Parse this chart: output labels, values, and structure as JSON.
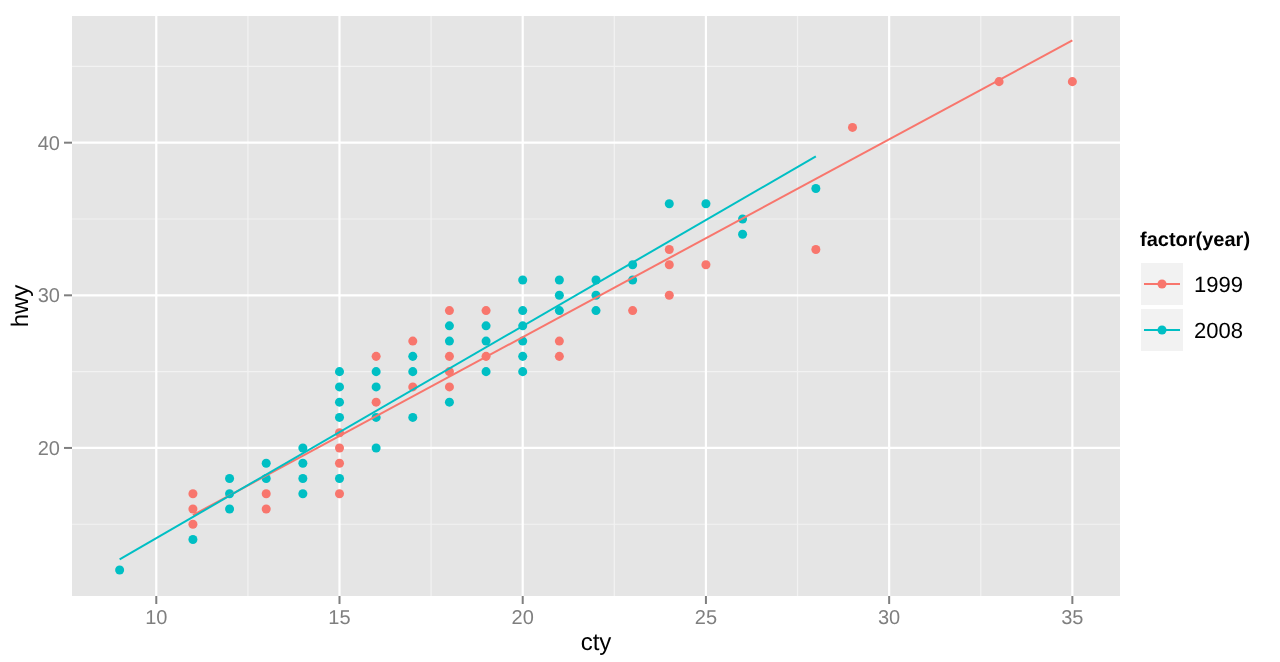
{
  "chart_data": {
    "type": "scatter",
    "xlabel": "cty",
    "ylabel": "hwy",
    "legend_title": "factor(year)",
    "legend": "right",
    "grid": true,
    "marker": "circle",
    "xlim": [
      7.7,
      36.3
    ],
    "ylim": [
      10.3,
      48.3
    ],
    "xticks": [
      10,
      15,
      20,
      25,
      30,
      35
    ],
    "yticks": [
      20,
      30,
      40
    ],
    "series": [
      {
        "name": "1999",
        "color": "#f8766d",
        "x": [
          11,
          11,
          11,
          13,
          13,
          15,
          15,
          15,
          15,
          16,
          16,
          17,
          17,
          18,
          18,
          18,
          18,
          19,
          19,
          21,
          21,
          23,
          24,
          24,
          24,
          25,
          28,
          29,
          33,
          35
        ],
        "values": [
          17,
          16,
          15,
          17,
          16,
          21,
          20,
          19,
          17,
          26,
          23,
          27,
          24,
          29,
          26,
          25,
          24,
          29,
          26,
          27,
          26,
          29,
          33,
          32,
          30,
          32,
          33,
          41,
          44,
          44
        ]
      },
      {
        "name": "2008",
        "color": "#00bfc4",
        "x": [
          9,
          11,
          12,
          12,
          12,
          13,
          13,
          14,
          14,
          14,
          14,
          15,
          15,
          15,
          15,
          15,
          16,
          16,
          16,
          16,
          17,
          17,
          17,
          18,
          18,
          18,
          19,
          19,
          19,
          20,
          20,
          20,
          20,
          20,
          20,
          21,
          21,
          21,
          22,
          22,
          22,
          23,
          23,
          24,
          25,
          26,
          26,
          28
        ],
        "values": [
          12,
          14,
          18,
          17,
          16,
          19,
          18,
          20,
          19,
          18,
          17,
          25,
          24,
          23,
          22,
          18,
          25,
          24,
          22,
          20,
          26,
          25,
          22,
          28,
          27,
          23,
          28,
          27,
          25,
          31,
          29,
          28,
          27,
          26,
          25,
          31,
          30,
          29,
          31,
          30,
          29,
          32,
          31,
          36,
          36,
          35,
          34,
          37
        ]
      },
      {
        "type": "line",
        "marker": "none",
        "color": "#f8766d",
        "x": [
          11,
          35
        ],
        "values": [
          15.6,
          46.7
        ]
      },
      {
        "type": "line",
        "marker": "none",
        "color": "#00bfc4",
        "x": [
          9,
          28
        ],
        "values": [
          12.7,
          39.1
        ]
      }
    ]
  }
}
